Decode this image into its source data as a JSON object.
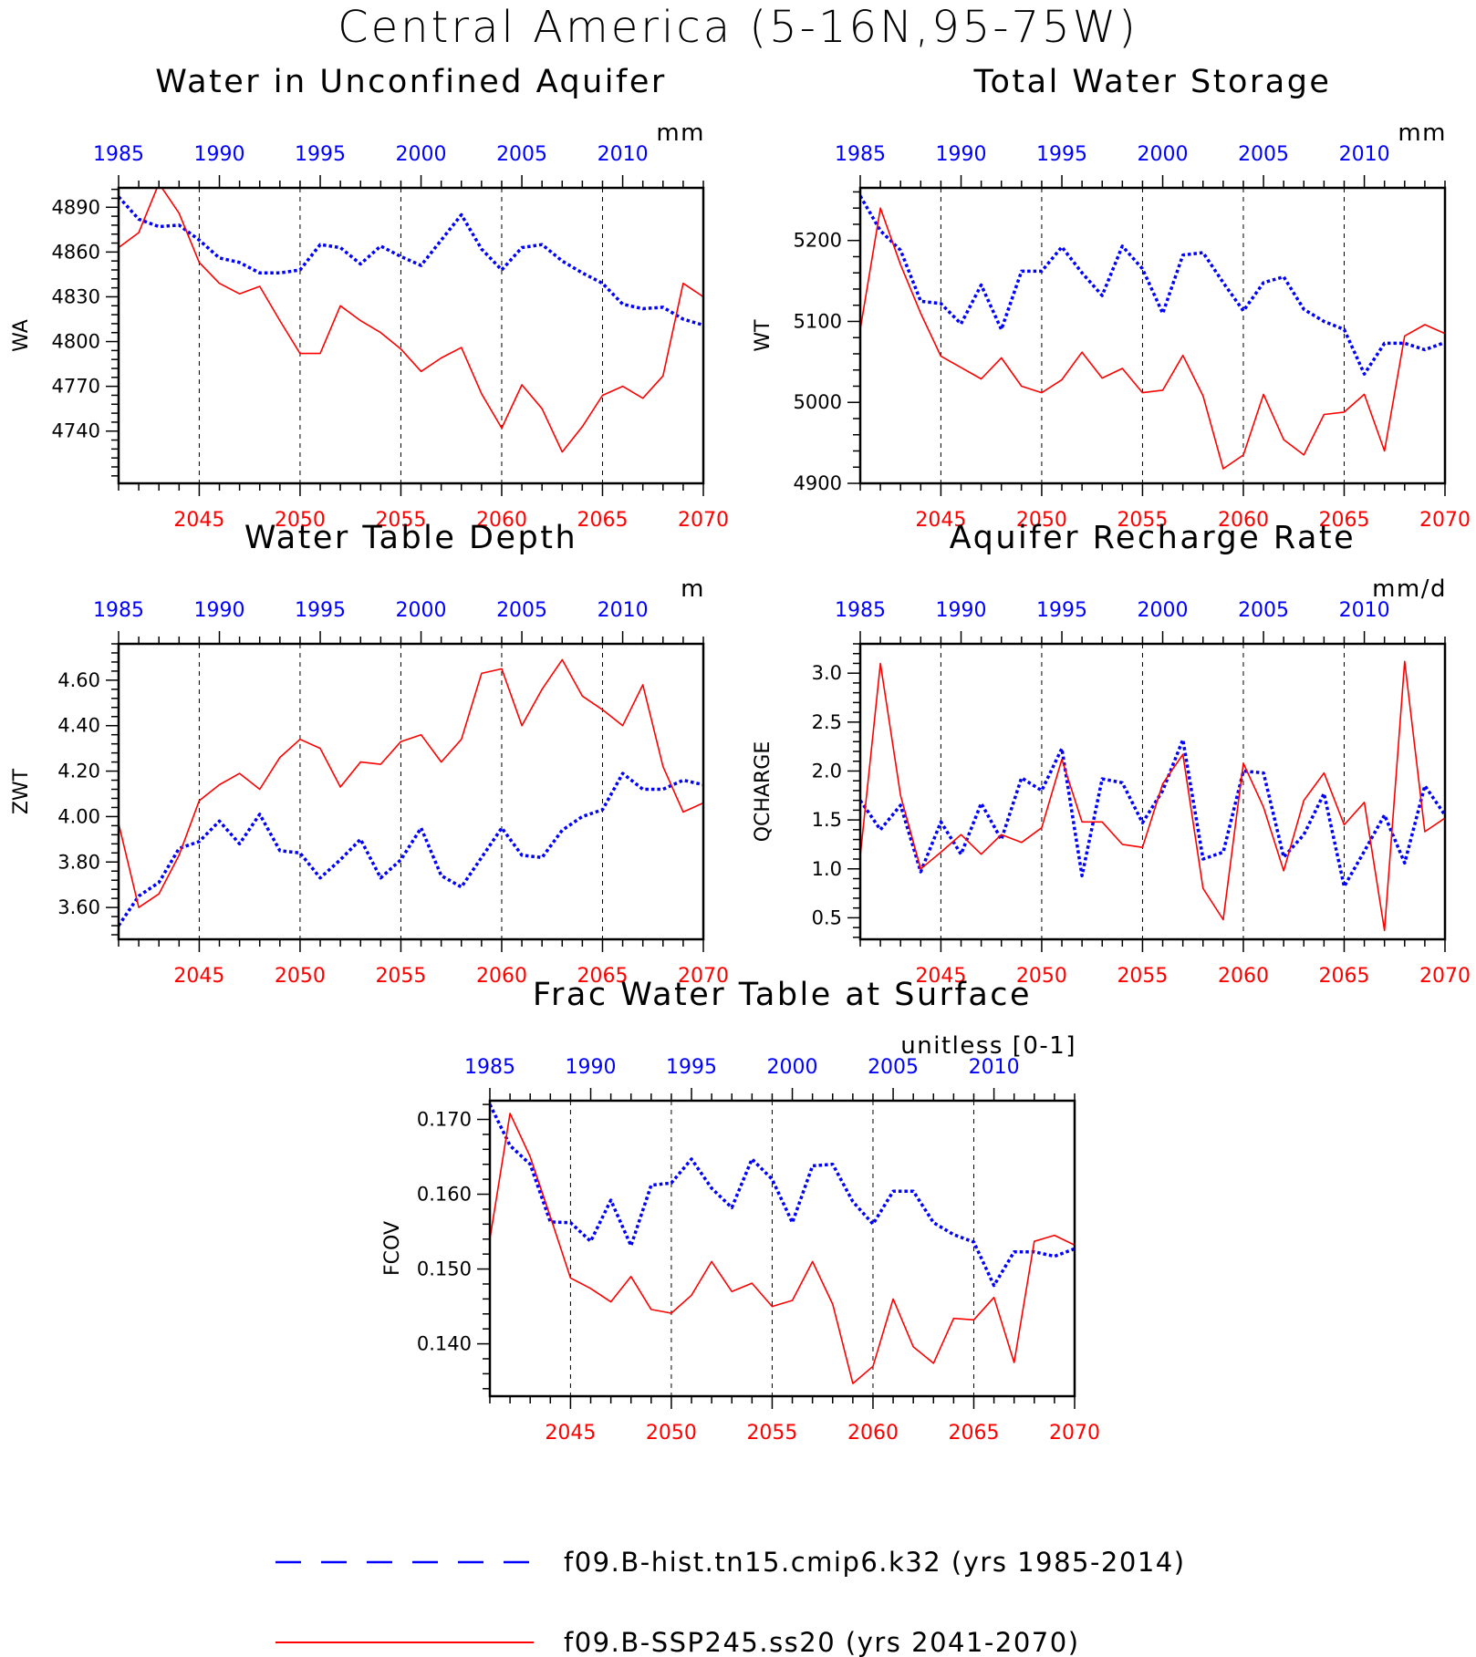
{
  "figure": {
    "title": "Central America (5-16N,95-75W)"
  },
  "colors": {
    "hist": "#0000ff",
    "ssp": "#ff0000",
    "axis": "#000000"
  },
  "legend": {
    "hist_label": "f09.B-hist.tn15.cmip6.k32 (yrs 1985-2014)",
    "ssp_label": "f09.B-SSP245.ss20 (yrs 2041-2070)"
  },
  "chart_data": [
    {
      "type": "line",
      "title": "Water in Unconfined Aquifer",
      "units": "mm",
      "ylabel": "WA",
      "ylim": [
        4705,
        4903
      ],
      "yticks": [
        4740,
        4770,
        4800,
        4830,
        4860,
        4890
      ],
      "ytick_decimals": 0,
      "x_top": {
        "label_years": [
          1985,
          1990,
          1995,
          2000,
          2005,
          2010
        ],
        "range": [
          1985,
          2014
        ]
      },
      "x_bottom": {
        "label_years": [
          2045,
          2050,
          2055,
          2060,
          2065,
          2070
        ],
        "range": [
          2041,
          2070
        ]
      },
      "series": [
        {
          "name": "f09.B-hist.tn15.cmip6.k32 (yrs 1985-2014)",
          "color": "#0000ff",
          "style": "dotted",
          "values": [
            4897,
            4882,
            4877,
            4878,
            4868,
            4856,
            4853,
            4846,
            4846,
            4848,
            4865,
            4863,
            4852,
            4864,
            4857,
            4851,
            4868,
            4885,
            4862,
            4848,
            4863,
            4865,
            4854,
            4846,
            4839,
            4825,
            4822,
            4823,
            4815,
            4811
          ]
        },
        {
          "name": "f09.B-SSP245.ss20 (yrs 2041-2070)",
          "color": "#ff0000",
          "style": "solid",
          "values": [
            4863,
            4873,
            4906,
            4886,
            4853,
            4839,
            4832,
            4837,
            4814,
            4792,
            4792,
            4824,
            4814,
            4806,
            4795,
            4780,
            4789,
            4796,
            4765,
            4742,
            4771,
            4755,
            4726,
            4743,
            4764,
            4770,
            4762,
            4777,
            4839,
            4830
          ]
        }
      ]
    },
    {
      "type": "line",
      "title": "Total Water Storage",
      "units": "mm",
      "ylabel": "WT",
      "ylim": [
        4900,
        5265
      ],
      "yticks": [
        4900,
        5000,
        5100,
        5200
      ],
      "ytick_decimals": 0,
      "x_top": {
        "label_years": [
          1985,
          1990,
          1995,
          2000,
          2005,
          2010
        ],
        "range": [
          1985,
          2014
        ]
      },
      "x_bottom": {
        "label_years": [
          2045,
          2050,
          2055,
          2060,
          2065,
          2070
        ],
        "range": [
          2041,
          2070
        ]
      },
      "series": [
        {
          "name": "f09.B-hist.tn15.cmip6.k32 (yrs 1985-2014)",
          "color": "#0000ff",
          "style": "dotted",
          "values": [
            5255,
            5212,
            5188,
            5125,
            5122,
            5097,
            5145,
            5090,
            5162,
            5162,
            5192,
            5160,
            5132,
            5193,
            5165,
            5110,
            5182,
            5185,
            5148,
            5113,
            5148,
            5155,
            5115,
            5100,
            5090,
            5035,
            5073,
            5073,
            5065,
            5074
          ]
        },
        {
          "name": "f09.B-SSP245.ss20 (yrs 2041-2070)",
          "color": "#ff0000",
          "style": "solid",
          "values": [
            5090,
            5240,
            5170,
            5110,
            5057,
            5043,
            5029,
            5055,
            5020,
            5012,
            5028,
            5062,
            5030,
            5042,
            5012,
            5015,
            5058,
            5008,
            4918,
            4935,
            5010,
            4954,
            4935,
            4985,
            4988,
            5010,
            4940,
            5082,
            5096,
            5085
          ]
        }
      ]
    },
    {
      "type": "line",
      "title": "Water Table Depth",
      "units": "m",
      "ylabel": "ZWT",
      "ylim": [
        3.46,
        4.76
      ],
      "yticks": [
        3.6,
        3.8,
        4.0,
        4.2,
        4.4,
        4.6
      ],
      "ytick_decimals": 2,
      "x_top": {
        "label_years": [
          1985,
          1990,
          1995,
          2000,
          2005,
          2010
        ],
        "range": [
          1985,
          2014
        ]
      },
      "x_bottom": {
        "label_years": [
          2045,
          2050,
          2055,
          2060,
          2065,
          2070
        ],
        "range": [
          2041,
          2070
        ]
      },
      "series": [
        {
          "name": "f09.B-hist.tn15.cmip6.k32 (yrs 1985-2014)",
          "color": "#0000ff",
          "style": "dotted",
          "values": [
            3.52,
            3.65,
            3.71,
            3.86,
            3.89,
            3.98,
            3.88,
            4.01,
            3.85,
            3.84,
            3.73,
            3.81,
            3.9,
            3.73,
            3.81,
            3.95,
            3.74,
            3.69,
            3.82,
            3.95,
            3.83,
            3.82,
            3.94,
            4.0,
            4.03,
            4.19,
            4.12,
            4.12,
            4.16,
            4.14
          ]
        },
        {
          "name": "f09.B-SSP245.ss20 (yrs 2041-2070)",
          "color": "#ff0000",
          "style": "solid",
          "values": [
            3.97,
            3.6,
            3.66,
            3.83,
            4.07,
            4.14,
            4.19,
            4.12,
            4.26,
            4.34,
            4.3,
            4.13,
            4.24,
            4.23,
            4.33,
            4.36,
            4.24,
            4.34,
            4.63,
            4.65,
            4.4,
            4.56,
            4.69,
            4.53,
            4.47,
            4.4,
            4.58,
            4.22,
            4.02,
            4.06
          ]
        }
      ]
    },
    {
      "type": "line",
      "title": "Aquifer Recharge Rate",
      "units": "mm/d",
      "ylabel": "QCHARGE",
      "ylim": [
        0.28,
        3.3
      ],
      "yticks": [
        0.5,
        1.0,
        1.5,
        2.0,
        2.5,
        3.0
      ],
      "ytick_decimals": 1,
      "x_top": {
        "label_years": [
          1985,
          1990,
          1995,
          2000,
          2005,
          2010
        ],
        "range": [
          1985,
          2014
        ]
      },
      "x_bottom": {
        "label_years": [
          2045,
          2050,
          2055,
          2060,
          2065,
          2070
        ],
        "range": [
          2041,
          2070
        ]
      },
      "series": [
        {
          "name": "f09.B-hist.tn15.cmip6.k32 (yrs 1985-2014)",
          "color": "#0000ff",
          "style": "dotted",
          "values": [
            1.7,
            1.4,
            1.65,
            0.97,
            1.48,
            1.15,
            1.67,
            1.3,
            1.93,
            1.8,
            2.23,
            0.93,
            1.92,
            1.88,
            1.47,
            1.8,
            2.32,
            1.1,
            1.17,
            2.0,
            1.98,
            1.12,
            1.35,
            1.77,
            0.82,
            1.18,
            1.55,
            1.06,
            1.85,
            1.55
          ]
        },
        {
          "name": "f09.B-SSP245.ss20 (yrs 2041-2070)",
          "color": "#ff0000",
          "style": "solid",
          "values": [
            1.13,
            3.1,
            1.75,
            1.0,
            1.17,
            1.35,
            1.15,
            1.35,
            1.27,
            1.42,
            2.12,
            1.48,
            1.48,
            1.25,
            1.22,
            1.87,
            2.17,
            0.8,
            0.48,
            2.08,
            1.63,
            0.98,
            1.7,
            1.98,
            1.45,
            1.68,
            0.37,
            3.12,
            1.38,
            1.52
          ]
        }
      ]
    },
    {
      "type": "line",
      "title": "Frac Water Table at Surface",
      "units": "unitless [0-1]",
      "ylabel": "FCOV",
      "ylim": [
        0.133,
        0.1725
      ],
      "yticks": [
        0.14,
        0.15,
        0.16,
        0.17
      ],
      "ytick_decimals": 3,
      "x_top": {
        "label_years": [
          1985,
          1990,
          1995,
          2000,
          2005,
          2010
        ],
        "range": [
          1985,
          2014
        ]
      },
      "x_bottom": {
        "label_years": [
          2045,
          2050,
          2055,
          2060,
          2065,
          2070
        ],
        "range": [
          2041,
          2070
        ]
      },
      "series": [
        {
          "name": "f09.B-hist.tn15.cmip6.k32 (yrs 1985-2014)",
          "color": "#0000ff",
          "style": "dotted",
          "values": [
            0.172,
            0.1665,
            0.164,
            0.1563,
            0.1562,
            0.1537,
            0.1592,
            0.1531,
            0.1612,
            0.1615,
            0.1647,
            0.1608,
            0.1582,
            0.1647,
            0.162,
            0.1562,
            0.1638,
            0.164,
            0.159,
            0.156,
            0.1604,
            0.1604,
            0.1562,
            0.1546,
            0.1536,
            0.1478,
            0.1523,
            0.1523,
            0.1517,
            0.1527
          ]
        },
        {
          "name": "f09.B-SSP245.ss20 (yrs 2041-2070)",
          "color": "#ff0000",
          "style": "solid",
          "values": [
            0.154,
            0.1708,
            0.165,
            0.157,
            0.1488,
            0.1474,
            0.1456,
            0.149,
            0.1446,
            0.1441,
            0.1465,
            0.151,
            0.147,
            0.1481,
            0.145,
            0.1458,
            0.151,
            0.1453,
            0.1347,
            0.137,
            0.146,
            0.1396,
            0.1374,
            0.1434,
            0.1432,
            0.1462,
            0.1375,
            0.1537,
            0.1545,
            0.1532
          ]
        }
      ]
    }
  ]
}
